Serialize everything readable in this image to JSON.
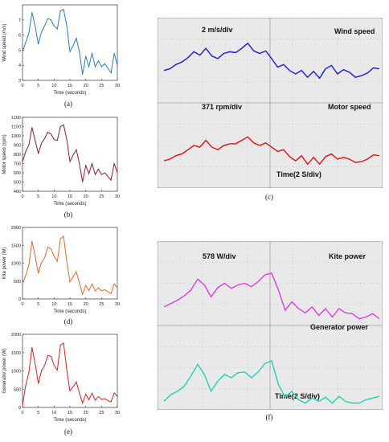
{
  "captions": {
    "a": "(a)",
    "b": "(b)",
    "c": "(c)",
    "d": "(d)",
    "e": "(e)",
    "f": "(f)"
  },
  "scope_c": {
    "top_left": "2 m/s/div",
    "top_right": "Wind speed",
    "mid_left": "371 rpm/div",
    "mid_right": "Motor speed",
    "bottom": "Time(2 S/div)",
    "colors": {
      "top": "#1a1adb",
      "bottom": "#e01010",
      "grid": "#9a9a9a",
      "background": "#e9e9e9"
    },
    "traces": {
      "top": [
        0.62,
        0.6,
        0.55,
        0.52,
        0.47,
        0.4,
        0.44,
        0.36,
        0.45,
        0.48,
        0.42,
        0.4,
        0.41,
        0.36,
        0.3,
        0.39,
        0.42,
        0.39,
        0.48,
        0.58,
        0.55,
        0.62,
        0.66,
        0.62,
        0.7,
        0.63,
        0.71,
        0.6,
        0.56,
        0.66,
        0.61,
        0.64,
        0.7,
        0.68,
        0.65,
        0.59,
        0.6
      ],
      "bottom": [
        0.68,
        0.66,
        0.62,
        0.6,
        0.55,
        0.5,
        0.52,
        0.44,
        0.52,
        0.55,
        0.5,
        0.48,
        0.48,
        0.44,
        0.4,
        0.47,
        0.5,
        0.47,
        0.52,
        0.57,
        0.55,
        0.63,
        0.68,
        0.62,
        0.72,
        0.64,
        0.72,
        0.63,
        0.6,
        0.66,
        0.64,
        0.66,
        0.7,
        0.69,
        0.66,
        0.61,
        0.62
      ]
    }
  },
  "scope_f": {
    "top_left": "578 W/div",
    "top_right": "Kite power",
    "mid_right": "Generator power",
    "bottom": "Time(2 S/div)",
    "colors": {
      "top": "#e23be0",
      "bottom": "#1ad6b0",
      "grid": "#9a9a9a",
      "background": "#e9e9e9"
    },
    "traces": {
      "top": [
        0.78,
        0.74,
        0.7,
        0.65,
        0.58,
        0.45,
        0.52,
        0.66,
        0.55,
        0.5,
        0.56,
        0.52,
        0.5,
        0.54,
        0.48,
        0.4,
        0.38,
        0.58,
        0.82,
        0.72,
        0.8,
        0.85,
        0.78,
        0.88,
        0.8,
        0.9,
        0.8,
        0.85,
        0.86,
        0.92,
        0.9,
        0.86,
        0.92
      ],
      "bottom": [
        0.9,
        0.82,
        0.78,
        0.72,
        0.6,
        0.46,
        0.58,
        0.78,
        0.66,
        0.58,
        0.62,
        0.56,
        0.55,
        0.62,
        0.55,
        0.45,
        0.42,
        0.7,
        0.85,
        0.78,
        0.88,
        0.92,
        0.86,
        0.9,
        0.85,
        0.92,
        0.84,
        0.9,
        0.92,
        0.92,
        0.88,
        0.86,
        0.84
      ]
    }
  },
  "chart_data": [
    {
      "type": "line",
      "title": "",
      "xlabel": "Time (seconds)",
      "ylabel": "Wind speed (m/s)",
      "xlim": [
        0,
        30
      ],
      "ylim": [
        3,
        8
      ],
      "xticks": [
        "0",
        "5",
        "10",
        "15",
        "20",
        "25",
        "30"
      ],
      "yticks": [
        "3",
        "4",
        "5",
        "6",
        "7"
      ],
      "color": "#2b7bb9",
      "x": [
        0,
        1,
        2,
        3,
        4,
        5,
        6,
        7,
        8,
        9,
        10,
        11,
        12,
        13,
        14,
        15,
        16,
        17,
        18,
        19,
        20,
        21,
        22,
        23,
        24,
        25,
        26,
        27,
        28,
        29,
        30
      ],
      "y": [
        4.9,
        5.5,
        6.1,
        7.5,
        6.6,
        5.4,
        6.2,
        6.6,
        7.1,
        7.0,
        6.6,
        6.4,
        7.6,
        7.7,
        6.6,
        4.9,
        5.3,
        5.8,
        4.9,
        3.4,
        4.6,
        3.9,
        4.8,
        3.9,
        4.3,
        3.9,
        4.1,
        3.8,
        3.5,
        4.8,
        4.0
      ]
    },
    {
      "type": "line",
      "title": "",
      "xlabel": "Time (seconds)",
      "ylabel": "Motor speed (rpm)",
      "xlim": [
        0,
        30
      ],
      "ylim": [
        400,
        1200
      ],
      "xticks": [
        "0",
        "5",
        "10",
        "15",
        "20",
        "25",
        "30"
      ],
      "yticks": [
        "400",
        "500",
        "600",
        "700",
        "800",
        "900",
        "1000",
        "1100",
        "1200"
      ],
      "color": "#8b1a3a",
      "x": [
        0,
        1,
        2,
        3,
        4,
        5,
        6,
        7,
        8,
        9,
        10,
        11,
        12,
        13,
        14,
        15,
        16,
        17,
        18,
        19,
        20,
        21,
        22,
        23,
        24,
        25,
        26,
        27,
        28,
        29,
        30
      ],
      "y": [
        720,
        830,
        900,
        1090,
        950,
        810,
        920,
        970,
        1040,
        1020,
        960,
        950,
        1100,
        1120,
        960,
        720,
        790,
        850,
        700,
        500,
        680,
        590,
        700,
        580,
        640,
        580,
        600,
        560,
        520,
        700,
        600
      ]
    },
    {
      "type": "line",
      "title": "",
      "xlabel": "Time (seconds)",
      "ylabel": "Kite power (W)",
      "xlim": [
        0,
        30
      ],
      "ylim": [
        0,
        2000
      ],
      "xticks": [
        "0",
        "5",
        "10",
        "15",
        "20",
        "25",
        "30"
      ],
      "yticks": [
        "0",
        "500",
        "1000",
        "1500",
        "2000"
      ],
      "color": "#e06a2a",
      "x": [
        0,
        1,
        2,
        3,
        4,
        5,
        6,
        7,
        8,
        9,
        10,
        11,
        12,
        13,
        14,
        15,
        16,
        17,
        18,
        19,
        20,
        21,
        22,
        23,
        24,
        25,
        26,
        27,
        28,
        29,
        30
      ],
      "y": [
        420,
        650,
        950,
        1620,
        1200,
        720,
        1020,
        1150,
        1450,
        1400,
        1200,
        1050,
        1680,
        1750,
        1050,
        480,
        620,
        760,
        450,
        130,
        380,
        230,
        420,
        220,
        310,
        230,
        260,
        200,
        150,
        420,
        310
      ]
    },
    {
      "type": "line",
      "title": "",
      "xlabel": "Time (seconds)",
      "ylabel": "Generator power (W)",
      "xlim": [
        0,
        30
      ],
      "ylim": [
        0,
        2000
      ],
      "xticks": [
        "0",
        "5",
        "10",
        "15",
        "20",
        "25",
        "30"
      ],
      "yticks": [
        "0",
        "500",
        "1000",
        "1500",
        "2000"
      ],
      "color": "#d42020",
      "x": [
        0,
        1,
        2,
        3,
        4,
        5,
        6,
        7,
        8,
        9,
        10,
        11,
        12,
        13,
        14,
        15,
        16,
        17,
        18,
        19,
        20,
        21,
        22,
        23,
        24,
        25,
        26,
        27,
        28,
        29,
        30
      ],
      "y": [
        50,
        600,
        950,
        1640,
        1200,
        650,
        1000,
        1150,
        1420,
        1400,
        1150,
        1020,
        1700,
        1760,
        1020,
        450,
        560,
        700,
        400,
        120,
        360,
        210,
        390,
        200,
        300,
        220,
        240,
        190,
        150,
        400,
        300
      ]
    }
  ]
}
